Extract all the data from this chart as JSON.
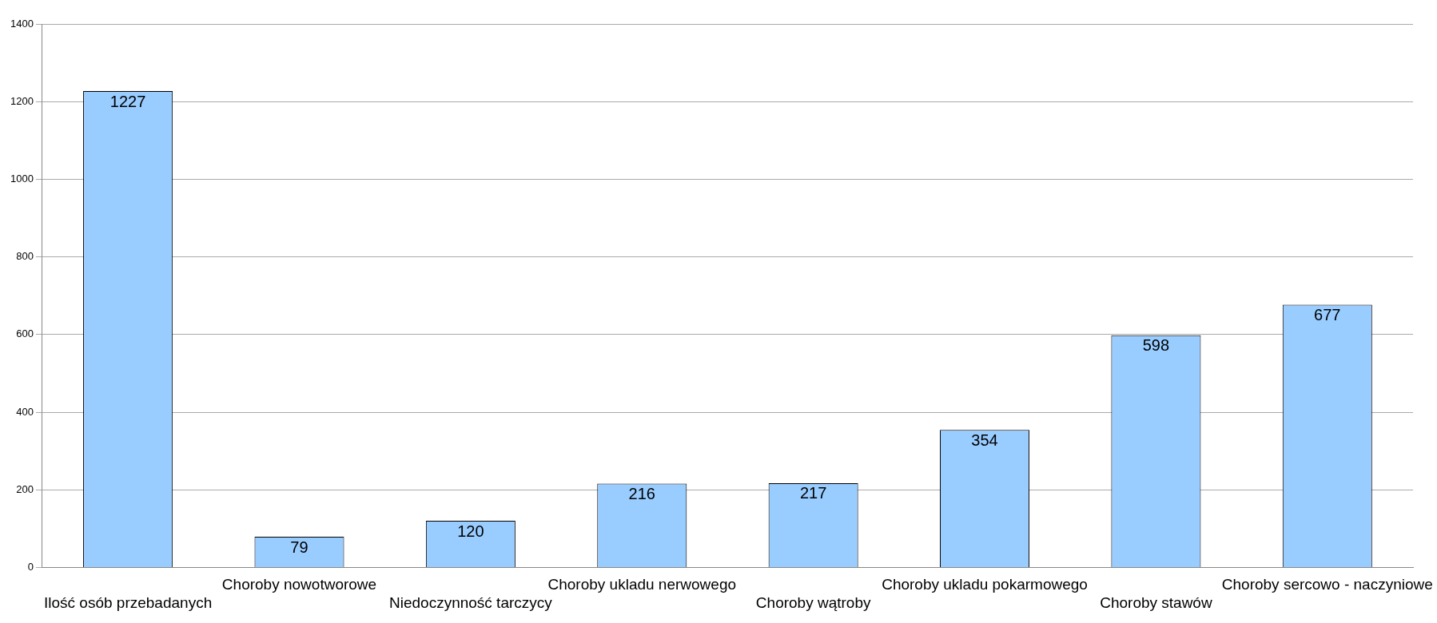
{
  "chart_data": {
    "type": "bar",
    "categories": [
      "Ilość osób przebadanych",
      "Choroby nowotworowe",
      "Niedoczynność tarczycy",
      "Choroby ukladu nerwowego",
      "Choroby wątroby",
      "Choroby ukladu pokarmowego",
      "Choroby stawów",
      "Choroby sercowo - naczyniowe"
    ],
    "values": [
      1227,
      79,
      120,
      216,
      217,
      354,
      598,
      677
    ],
    "color": "#99ccff",
    "ylim": [
      0,
      1400
    ],
    "yticks": [
      0,
      200,
      400,
      600,
      800,
      1000,
      1200,
      1400
    ],
    "grid": "y",
    "data_labels": true
  }
}
